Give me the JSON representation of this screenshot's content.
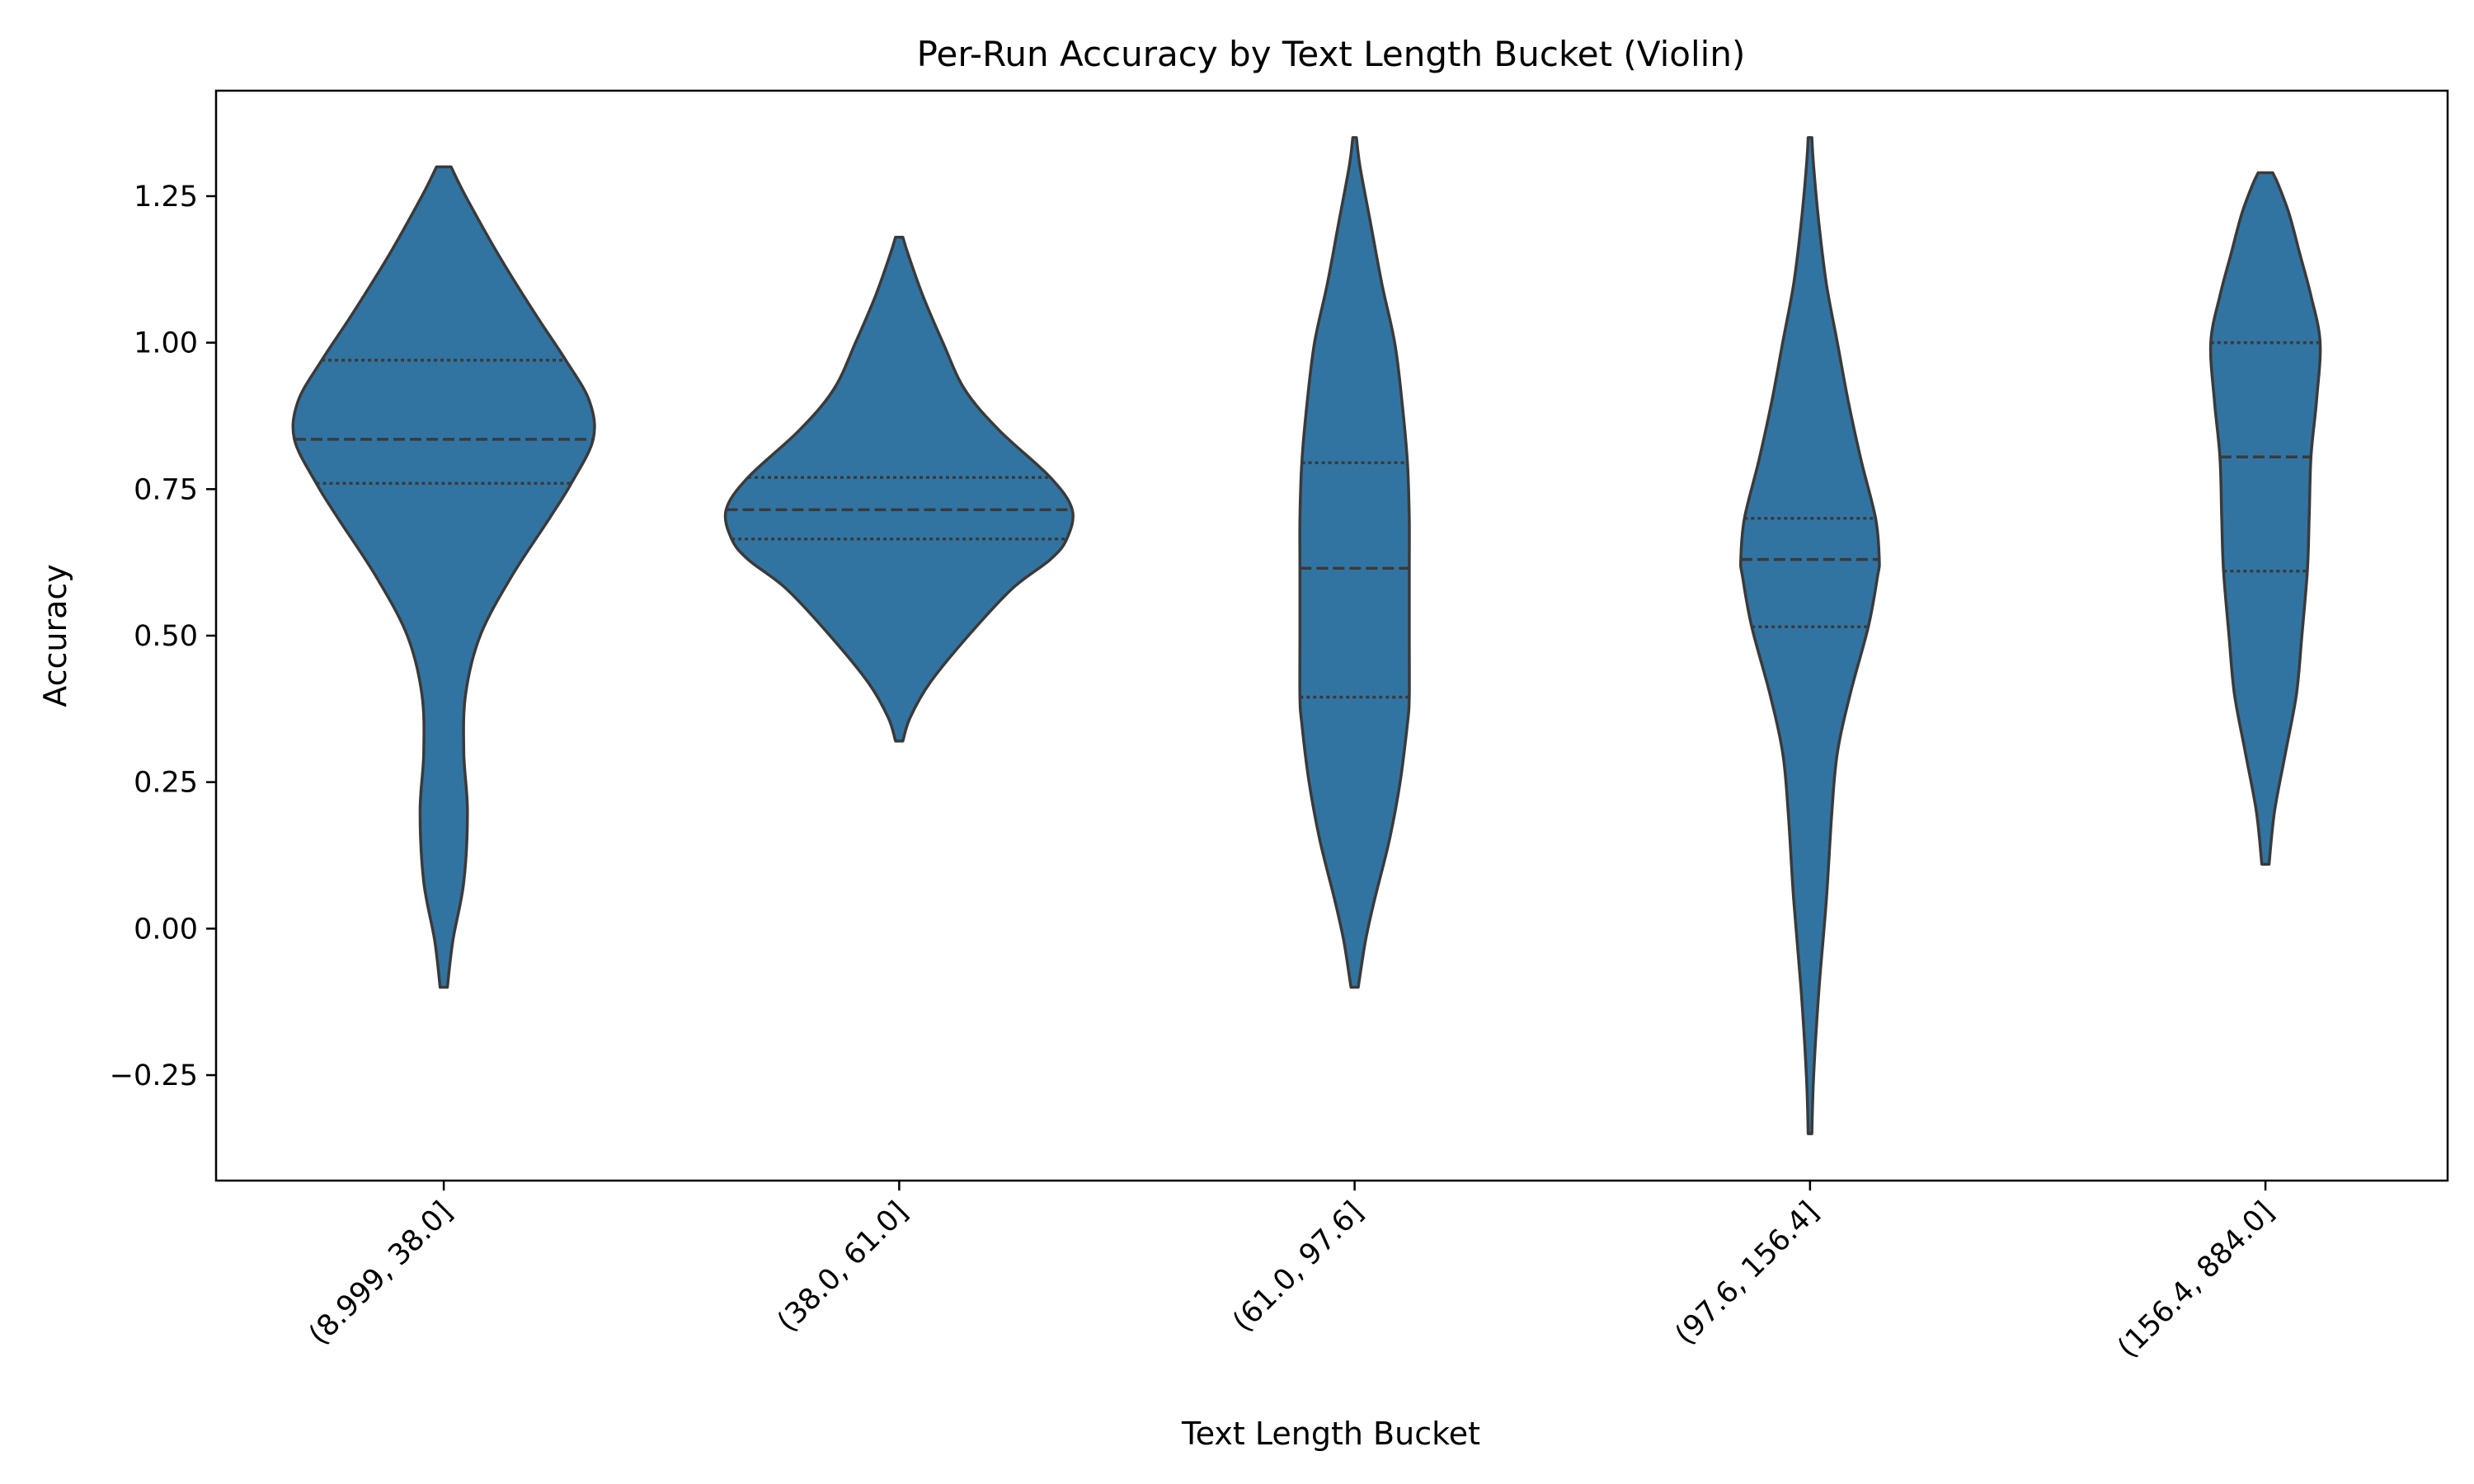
{
  "chart_data": {
    "type": "violin",
    "title": "Per-Run Accuracy by Text Length Bucket (Violin)",
    "xlabel": "Text Length Bucket",
    "ylabel": "Accuracy",
    "ylim": [
      -0.43,
      1.43
    ],
    "yticks": [
      -0.25,
      0.0,
      0.25,
      0.5,
      0.75,
      1.0,
      1.25
    ],
    "ytick_labels": [
      "−0.25",
      "0.00",
      "0.25",
      "0.50",
      "0.75",
      "1.00",
      "1.25"
    ],
    "categories": [
      "(8.999, 38.0]",
      "(38.0, 61.0]",
      "(61.0, 97.6]",
      "(97.6, 156.4]",
      "(156.4, 884.0]"
    ],
    "fill_color": "#3274a1",
    "edge_color": "#3a3a3a",
    "grid": false,
    "legend": "none",
    "violins": [
      {
        "category": "(8.999, 38.0]",
        "min": -0.1,
        "max": 1.3,
        "q1": 0.76,
        "median": 0.835,
        "q3": 0.97,
        "density": [
          [
            -0.1,
            0.02
          ],
          [
            -0.02,
            0.05
          ],
          [
            0.08,
            0.11
          ],
          [
            0.2,
            0.13
          ],
          [
            0.3,
            0.11
          ],
          [
            0.4,
            0.12
          ],
          [
            0.5,
            0.2
          ],
          [
            0.6,
            0.37
          ],
          [
            0.7,
            0.58
          ],
          [
            0.76,
            0.7
          ],
          [
            0.835,
            0.82
          ],
          [
            0.9,
            0.8
          ],
          [
            0.97,
            0.67
          ],
          [
            1.05,
            0.5
          ],
          [
            1.15,
            0.3
          ],
          [
            1.25,
            0.12
          ],
          [
            1.3,
            0.04
          ]
        ]
      },
      {
        "category": "(38.0, 61.0]",
        "min": 0.32,
        "max": 1.18,
        "q1": 0.665,
        "median": 0.715,
        "q3": 0.77,
        "density": [
          [
            0.32,
            0.02
          ],
          [
            0.36,
            0.06
          ],
          [
            0.42,
            0.17
          ],
          [
            0.5,
            0.38
          ],
          [
            0.58,
            0.62
          ],
          [
            0.63,
            0.83
          ],
          [
            0.665,
            0.92
          ],
          [
            0.715,
            0.95
          ],
          [
            0.77,
            0.83
          ],
          [
            0.85,
            0.55
          ],
          [
            0.92,
            0.36
          ],
          [
            1.0,
            0.24
          ],
          [
            1.08,
            0.13
          ],
          [
            1.15,
            0.05
          ],
          [
            1.18,
            0.02
          ]
        ]
      },
      {
        "category": "(61.0, 97.6]",
        "min": -0.1,
        "max": 1.35,
        "q1": 0.395,
        "median": 0.615,
        "q3": 0.795,
        "density": [
          [
            -0.1,
            0.02
          ],
          [
            -0.02,
            0.06
          ],
          [
            0.05,
            0.11
          ],
          [
            0.15,
            0.19
          ],
          [
            0.25,
            0.25
          ],
          [
            0.35,
            0.29
          ],
          [
            0.395,
            0.3
          ],
          [
            0.5,
            0.3
          ],
          [
            0.615,
            0.3
          ],
          [
            0.7,
            0.3
          ],
          [
            0.795,
            0.29
          ],
          [
            0.9,
            0.26
          ],
          [
            1.0,
            0.22
          ],
          [
            1.1,
            0.15
          ],
          [
            1.2,
            0.09
          ],
          [
            1.3,
            0.03
          ],
          [
            1.35,
            0.01
          ]
        ]
      },
      {
        "category": "(97.6, 156.4]",
        "min": -0.35,
        "max": 1.35,
        "q1": 0.515,
        "median": 0.63,
        "q3": 0.7,
        "density": [
          [
            -0.35,
            0.01
          ],
          [
            -0.25,
            0.02
          ],
          [
            -0.1,
            0.05
          ],
          [
            0.05,
            0.09
          ],
          [
            0.2,
            0.12
          ],
          [
            0.3,
            0.15
          ],
          [
            0.4,
            0.22
          ],
          [
            0.515,
            0.32
          ],
          [
            0.6,
            0.37
          ],
          [
            0.63,
            0.38
          ],
          [
            0.7,
            0.36
          ],
          [
            0.8,
            0.28
          ],
          [
            0.9,
            0.21
          ],
          [
            1.0,
            0.15
          ],
          [
            1.1,
            0.09
          ],
          [
            1.2,
            0.05
          ],
          [
            1.3,
            0.02
          ],
          [
            1.35,
            0.01
          ]
        ]
      },
      {
        "category": "(156.4, 884.0]",
        "min": 0.11,
        "max": 1.29,
        "q1": 0.61,
        "median": 0.805,
        "q3": 1.0,
        "density": [
          [
            0.11,
            0.02
          ],
          [
            0.2,
            0.05
          ],
          [
            0.3,
            0.11
          ],
          [
            0.4,
            0.17
          ],
          [
            0.5,
            0.2
          ],
          [
            0.61,
            0.23
          ],
          [
            0.7,
            0.24
          ],
          [
            0.805,
            0.25
          ],
          [
            0.9,
            0.28
          ],
          [
            1.0,
            0.3
          ],
          [
            1.08,
            0.25
          ],
          [
            1.15,
            0.19
          ],
          [
            1.22,
            0.13
          ],
          [
            1.27,
            0.07
          ],
          [
            1.29,
            0.04
          ]
        ]
      }
    ]
  }
}
